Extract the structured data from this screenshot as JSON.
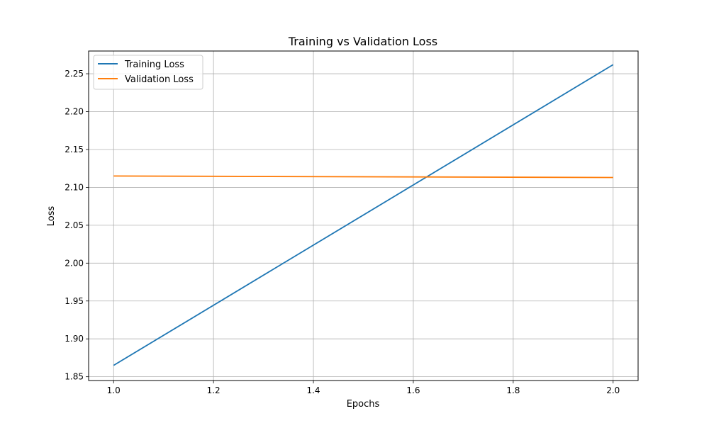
{
  "chart_data": {
    "type": "line",
    "title": "Training vs Validation Loss",
    "xlabel": "Epochs",
    "ylabel": "Loss",
    "xlim": [
      0.95,
      2.05
    ],
    "ylim": [
      1.845,
      2.28
    ],
    "xticks": [
      1.0,
      1.2,
      1.4,
      1.6,
      1.8,
      2.0
    ],
    "xtick_labels": [
      "1.0",
      "1.2",
      "1.4",
      "1.6",
      "1.8",
      "2.0"
    ],
    "yticks": [
      1.85,
      1.9,
      1.95,
      2.0,
      2.05,
      2.1,
      2.15,
      2.2,
      2.25
    ],
    "ytick_labels": [
      "1.85",
      "1.90",
      "1.95",
      "2.00",
      "2.05",
      "2.10",
      "2.15",
      "2.20",
      "2.25"
    ],
    "grid": true,
    "legend_position": "top-left",
    "x": [
      1,
      2
    ],
    "series": [
      {
        "name": "Training Loss",
        "values": [
          1.865,
          2.262
        ],
        "color": "#1f77b4"
      },
      {
        "name": "Validation Loss",
        "values": [
          2.115,
          2.113
        ],
        "color": "#ff7f0e"
      }
    ]
  }
}
